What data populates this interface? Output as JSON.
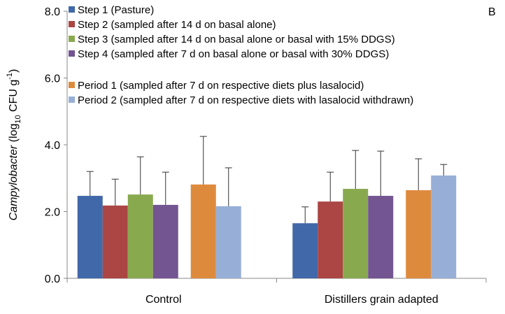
{
  "chart_data": {
    "type": "bar",
    "panel_label": "B",
    "y_label": [
      "Campylobacter",
      " (log",
      "10",
      " CFU g",
      "-1",
      ")"
    ],
    "categories": [
      "Control",
      "Distillers grain adapted"
    ],
    "ylim": [
      0,
      8
    ],
    "yticks": [
      {
        "value": 0,
        "label": "0.0"
      },
      {
        "value": 2,
        "label": "2.0"
      },
      {
        "value": 4,
        "label": "4.0"
      },
      {
        "value": 6,
        "label": "6.0"
      },
      {
        "value": 8,
        "label": "8.0"
      }
    ],
    "series": [
      {
        "name": "Step 1 (Pasture)",
        "color": "#4168a9",
        "values": [
          2.47,
          1.65
        ],
        "errors": [
          0.73,
          0.49
        ]
      },
      {
        "name": "Step 2 (sampled after 14 d on basal alone)",
        "color": "#ab4644",
        "values": [
          2.18,
          2.3
        ],
        "errors": [
          0.79,
          0.88
        ]
      },
      {
        "name": "Step 3 (sampled after 14 d on basal alone or basal with 15% DDGS)",
        "color": "#89a94f",
        "values": [
          2.51,
          2.68
        ],
        "errors": [
          1.13,
          1.15
        ]
      },
      {
        "name": "Step 4 (sampled after 7 d on basal alone or basal with 30% DDGS)",
        "color": "#735591",
        "values": [
          2.2,
          2.47
        ],
        "errors": [
          0.98,
          1.34
        ]
      },
      {
        "name": "Period 1 (sampled after 7 d on respective diets plus lasalocid)",
        "color": "#de8a3d",
        "values": [
          2.81,
          2.64
        ],
        "errors": [
          1.44,
          0.94
        ]
      },
      {
        "name": "Period 2 (sampled after 7 d on respective diets with lasalocid withdrawn)",
        "color": "#97afd6",
        "values": [
          2.16,
          3.08
        ],
        "errors": [
          1.15,
          0.33
        ]
      }
    ]
  }
}
